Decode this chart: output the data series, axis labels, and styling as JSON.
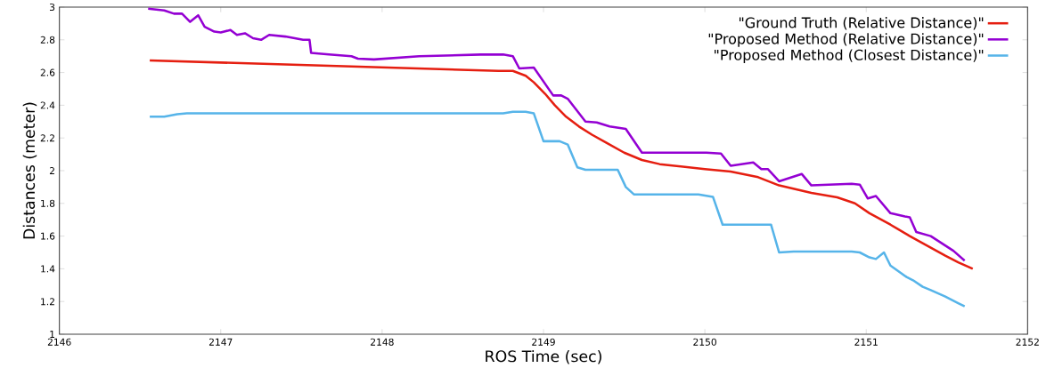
{
  "chart_data": {
    "type": "line",
    "xlabel": "ROS Time (sec)",
    "ylabel": "Distances (meter)",
    "xlim": [
      2146,
      2152
    ],
    "ylim": [
      1,
      3
    ],
    "xticks": [
      2146,
      2147,
      2148,
      2149,
      2150,
      2151,
      2152
    ],
    "yticks": [
      1,
      1.2,
      1.4,
      1.6,
      1.8,
      2,
      2.2,
      2.4,
      2.6,
      2.8,
      3
    ],
    "legend": "top right",
    "grid": false,
    "line_style": "solid",
    "series": [
      {
        "name": "\"Ground Truth (Relative Distance)\"",
        "color": "#e51e10",
        "x": [
          2146.56,
          2148.72,
          2148.81,
          2148.89,
          2148.94,
          2149.01,
          2149.07,
          2149.14,
          2149.22,
          2149.3,
          2149.39,
          2149.5,
          2149.61,
          2149.72,
          2150.0,
          2150.16,
          2150.33,
          2150.46,
          2150.66,
          2150.82,
          2150.93,
          2151.02,
          2151.15,
          2151.27,
          2151.38,
          2151.49,
          2151.57,
          2151.66
        ],
        "values": [
          2.674,
          2.61,
          2.61,
          2.58,
          2.54,
          2.47,
          2.4,
          2.33,
          2.27,
          2.22,
          2.17,
          2.11,
          2.065,
          2.04,
          2.01,
          1.995,
          1.96,
          1.91,
          1.864,
          1.837,
          1.8,
          1.74,
          1.67,
          1.6,
          1.54,
          1.48,
          1.44,
          1.4
        ]
      },
      {
        "name": "\"Proposed Method (Relative Distance)\"",
        "color": "#9400d3",
        "x": [
          2146.55,
          2146.65,
          2146.71,
          2146.76,
          2146.81,
          2146.86,
          2146.9,
          2146.96,
          2147.0,
          2147.06,
          2147.1,
          2147.15,
          2147.2,
          2147.25,
          2147.3,
          2147.4,
          2147.51,
          2147.55,
          2147.56,
          2147.67,
          2147.81,
          2147.85,
          2147.95,
          2148.23,
          2148.61,
          2148.75,
          2148.81,
          2148.85,
          2148.94,
          2149.06,
          2149.11,
          2149.15,
          2149.26,
          2149.33,
          2149.41,
          2149.51,
          2149.61,
          2149.81,
          2150.01,
          2150.1,
          2150.16,
          2150.3,
          2150.35,
          2150.39,
          2150.46,
          2150.6,
          2150.66,
          2150.91,
          2150.96,
          2151.01,
          2151.06,
          2151.15,
          2151.24,
          2151.27,
          2151.31,
          2151.4,
          2151.54,
          2151.61
        ],
        "values": [
          2.99,
          2.98,
          2.96,
          2.96,
          2.91,
          2.95,
          2.88,
          2.85,
          2.845,
          2.86,
          2.83,
          2.84,
          2.81,
          2.8,
          2.83,
          2.82,
          2.8,
          2.8,
          2.72,
          2.71,
          2.7,
          2.685,
          2.68,
          2.7,
          2.71,
          2.71,
          2.7,
          2.625,
          2.63,
          2.46,
          2.46,
          2.44,
          2.3,
          2.295,
          2.27,
          2.255,
          2.11,
          2.11,
          2.11,
          2.105,
          2.03,
          2.05,
          2.01,
          2.01,
          1.935,
          1.98,
          1.91,
          1.92,
          1.915,
          1.83,
          1.845,
          1.74,
          1.72,
          1.715,
          1.625,
          1.6,
          1.51,
          1.45
        ]
      },
      {
        "name": "\"Proposed Method (Closest Distance)\"",
        "color": "#56b4e9",
        "x": [
          2146.56,
          2146.65,
          2146.73,
          2146.79,
          2148.75,
          2148.81,
          2148.89,
          2148.94,
          2149.0,
          2149.1,
          2149.15,
          2149.21,
          2149.26,
          2149.46,
          2149.51,
          2149.56,
          2149.96,
          2150.05,
          2150.11,
          2150.41,
          2150.46,
          2150.55,
          2150.91,
          2150.96,
          2151.02,
          2151.06,
          2151.11,
          2151.15,
          2151.25,
          2151.29,
          2151.35,
          2151.4,
          2151.49,
          2151.57,
          2151.61
        ],
        "values": [
          2.33,
          2.33,
          2.345,
          2.35,
          2.35,
          2.36,
          2.36,
          2.35,
          2.18,
          2.18,
          2.16,
          2.02,
          2.005,
          2.005,
          1.9,
          1.855,
          1.855,
          1.84,
          1.67,
          1.67,
          1.5,
          1.505,
          1.505,
          1.5,
          1.47,
          1.46,
          1.5,
          1.42,
          1.35,
          1.33,
          1.29,
          1.27,
          1.23,
          1.19,
          1.17
        ]
      }
    ]
  }
}
